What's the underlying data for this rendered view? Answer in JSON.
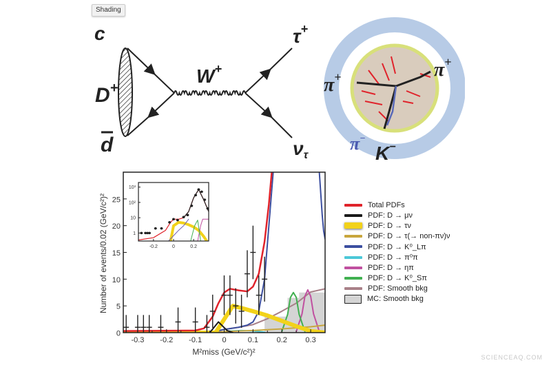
{
  "tooltip": {
    "label": "Shading"
  },
  "feynman": {
    "quark_top": "c",
    "meson": "D",
    "meson_charge": "+",
    "antiquark_bottom": "d",
    "boson": "W",
    "boson_charge": "+",
    "lepton": "τ",
    "lepton_charge": "+",
    "neutrino": "ν",
    "neutrino_sub": "τ"
  },
  "detector": {
    "labels": [
      {
        "text": "π",
        "sup": "+"
      },
      {
        "text": "π",
        "sup": "+"
      },
      {
        "text": "π",
        "sup": "−"
      },
      {
        "text": "K",
        "sup": "−"
      }
    ],
    "colors": {
      "outer_ring": "#b7cbe6",
      "inner_disk": "#d9ccbd",
      "tracks": "#e0232b",
      "layer": "#d8e07a"
    }
  },
  "legend": [
    {
      "label": "Total PDFs",
      "color": "#e0232b"
    },
    {
      "label": "PDF: D → μν",
      "color": "#1a1a1a"
    },
    {
      "label": "PDF: D → τν",
      "color": "#f2d21a"
    },
    {
      "label": "PDF: D → τ(→ non-πν)ν",
      "color": "#c8a63c"
    },
    {
      "label": "PDF: D → K⁰_Lπ",
      "color": "#3c4fa0"
    },
    {
      "label": "PDF: D → π⁰π",
      "color": "#4cc8d8"
    },
    {
      "label": "PDF: D → ηπ",
      "color": "#c050a0"
    },
    {
      "label": "PDF: D → K⁰_Sπ",
      "color": "#40b050"
    },
    {
      "label": "PDF: Smooth bkg",
      "color": "#a88088"
    },
    {
      "label": "MC: Smooth bkg",
      "color": "#d4d4d4"
    }
  ],
  "watermark": "SCIENCEAQ.COM",
  "chart_data": [
    {
      "type": "line",
      "xlabel": "M²miss (GeV/c²)²",
      "ylabel": "Number of events/0.02 (GeV/c²)²",
      "xlim": [
        -0.35,
        0.35
      ],
      "ylim": [
        0,
        30
      ],
      "xticks": [
        "-0.3",
        "-0.2",
        "-0.1",
        "0",
        "0.1",
        "0.2",
        "0.3"
      ],
      "xtick_values": [
        -0.3,
        -0.2,
        -0.1,
        0,
        0.1,
        0.2,
        0.3
      ],
      "yticks": [
        "0",
        "5",
        "10",
        "15",
        "20",
        "25"
      ],
      "ytick_values": [
        0,
        5,
        10,
        15,
        20,
        25
      ],
      "grid": false,
      "legend_placement": "right-outside",
      "data_points": [
        {
          "x": -0.34,
          "y": 1,
          "err": 2.3
        },
        {
          "x": -0.3,
          "y": 1,
          "err": 2.3
        },
        {
          "x": -0.28,
          "y": 1,
          "err": 2.3
        },
        {
          "x": -0.26,
          "y": 1,
          "err": 2.3
        },
        {
          "x": -0.22,
          "y": 1,
          "err": 2.3
        },
        {
          "x": -0.16,
          "y": 2,
          "err": 2.7
        },
        {
          "x": -0.1,
          "y": 2,
          "err": 2.7
        },
        {
          "x": -0.06,
          "y": 1,
          "err": 2.3
        },
        {
          "x": -0.04,
          "y": 4,
          "err": 3.1
        },
        {
          "x": 0.0,
          "y": 7,
          "err": 3.7
        },
        {
          "x": 0.02,
          "y": 7,
          "err": 3.7
        },
        {
          "x": 0.04,
          "y": 5,
          "err": 3.3
        },
        {
          "x": 0.06,
          "y": 4,
          "err": 3.1
        },
        {
          "x": 0.08,
          "y": 11,
          "err": 4.4
        },
        {
          "x": 0.1,
          "y": 15,
          "err": 5
        },
        {
          "x": 0.12,
          "y": 7,
          "err": 3.7
        },
        {
          "x": 0.14,
          "y": 10,
          "err": 4.2
        }
      ],
      "mc_hist": {
        "color": "#d4d4d4",
        "bins": [
          {
            "x0": 0.14,
            "x1": 0.22,
            "y": 3
          },
          {
            "x0": 0.22,
            "x1": 0.26,
            "y": 6.5
          },
          {
            "x0": 0.26,
            "x1": 0.35,
            "y": 7.5
          }
        ]
      },
      "series": [
        {
          "key": "smooth_bkg",
          "color": "#a88088",
          "width": 2,
          "x": [
            -0.06,
            0,
            0.05,
            0.1,
            0.15,
            0.2,
            0.25,
            0.3,
            0.35
          ],
          "y": [
            0,
            0.6,
            1,
            1.5,
            2.6,
            4,
            5.5,
            7.6,
            8.2
          ]
        },
        {
          "key": "etapi",
          "color": "#c050a0",
          "width": 2,
          "x": [
            0.25,
            0.27,
            0.28,
            0.29,
            0.3,
            0.31,
            0.33
          ],
          "y": [
            0.2,
            3.5,
            6.8,
            8,
            6.8,
            3.5,
            0.2
          ]
        },
        {
          "key": "kspi",
          "color": "#40b050",
          "width": 2,
          "x": [
            0.2,
            0.22,
            0.23,
            0.24,
            0.25,
            0.26,
            0.28
          ],
          "y": [
            0.2,
            3.4,
            6.6,
            7.5,
            6.6,
            3.4,
            0.2
          ]
        },
        {
          "key": "pi0pi",
          "color": "#4cc8d8",
          "width": 2,
          "x": [
            -0.02,
            0.02,
            0.06,
            0.1,
            0.14
          ],
          "y": [
            0,
            0.3,
            0.4,
            0.3,
            0.1
          ]
        },
        {
          "key": "tau_nonpi",
          "color": "#c8a63c",
          "width": 2,
          "x": [
            -0.35,
            0,
            0.1,
            0.2,
            0.3,
            0.35
          ],
          "y": [
            0.1,
            0.2,
            0.4,
            0.7,
            1.1,
            1.4
          ]
        },
        {
          "key": "klpi_left",
          "color": "#3c4fa0",
          "width": 2,
          "x": [
            -0.05,
            0,
            0.05,
            0.08,
            0.1,
            0.12,
            0.14,
            0.155,
            0.17
          ],
          "y": [
            0,
            0.6,
            1,
            1.4,
            2,
            4,
            10,
            20,
            30
          ]
        },
        {
          "key": "klpi_right",
          "color": "#3c4fa0",
          "width": 2,
          "x": [
            0.33,
            0.335,
            0.34,
            0.345,
            0.35
          ],
          "y": [
            30,
            26,
            22,
            19,
            17.5
          ]
        },
        {
          "key": "taunu",
          "color": "#f2d21a",
          "width": 6,
          "x": [
            -0.35,
            -0.03,
            0,
            0.03,
            0.06,
            0.1,
            0.15,
            0.2,
            0.25,
            0.3,
            0.35
          ],
          "y": [
            0,
            0,
            2.5,
            5,
            4.6,
            4,
            3.2,
            2.2,
            1.2,
            0.3,
            0
          ]
        },
        {
          "key": "munu",
          "color": "#1a1a1a",
          "width": 2,
          "x": [
            -0.05,
            -0.035,
            -0.02,
            -0.005,
            0.01,
            0.03
          ],
          "y": [
            0,
            1,
            2,
            1.2,
            0.4,
            0
          ]
        },
        {
          "key": "total",
          "color": "#e0232b",
          "width": 2.5,
          "x": [
            -0.35,
            -0.1,
            -0.07,
            -0.04,
            -0.02,
            0,
            0.02,
            0.05,
            0.08,
            0.1,
            0.12,
            0.14,
            0.155,
            0.165
          ],
          "y": [
            0.3,
            0.4,
            0.8,
            3,
            5.5,
            7.5,
            8.2,
            7.9,
            7.7,
            8.6,
            11,
            17,
            24,
            30
          ]
        }
      ]
    },
    {
      "type": "line",
      "inset": true,
      "xlim": [
        -0.35,
        0.35
      ],
      "yscale": "log",
      "ylim": [
        0.3,
        2000
      ],
      "xticks": [
        "-0.2",
        "0",
        "0.2"
      ],
      "xtick_values": [
        -0.2,
        0,
        0.2
      ],
      "yticks": [
        "1",
        "10",
        "10²",
        "10³"
      ],
      "ytick_values": [
        1,
        10,
        100,
        1000
      ],
      "data_points": [
        {
          "x": -0.32,
          "y": 1
        },
        {
          "x": -0.28,
          "y": 1
        },
        {
          "x": -0.26,
          "y": 1
        },
        {
          "x": -0.24,
          "y": 1
        },
        {
          "x": -0.18,
          "y": 2
        },
        {
          "x": -0.12,
          "y": 2
        },
        {
          "x": -0.04,
          "y": 5
        },
        {
          "x": 0,
          "y": 8
        },
        {
          "x": 0.04,
          "y": 7
        },
        {
          "x": 0.1,
          "y": 11
        },
        {
          "x": 0.14,
          "y": 15
        },
        {
          "x": 0.18,
          "y": 60
        },
        {
          "x": 0.22,
          "y": 300
        },
        {
          "x": 0.25,
          "y": 700
        },
        {
          "x": 0.28,
          "y": 500
        },
        {
          "x": 0.31,
          "y": 150
        },
        {
          "x": 0.34,
          "y": 40
        }
      ],
      "series": [
        {
          "key": "total",
          "color": "#e0232b",
          "width": 1.2,
          "x": [
            -0.35,
            -0.2,
            -0.08,
            -0.03,
            0,
            0.05,
            0.1,
            0.15,
            0.2,
            0.25,
            0.3,
            0.35
          ],
          "y": [
            0.35,
            0.5,
            1.5,
            5,
            8,
            8,
            10,
            25,
            200,
            700,
            150,
            25
          ]
        },
        {
          "key": "total_black",
          "color": "#222",
          "width": 1.2,
          "x": [
            0.1,
            0.15,
            0.2,
            0.25,
            0.3,
            0.35
          ],
          "y": [
            10,
            25,
            200,
            700,
            150,
            25
          ]
        },
        {
          "key": "taunu",
          "color": "#f2d21a",
          "width": 4,
          "x": [
            -0.03,
            0,
            0.05,
            0.1,
            0.15,
            0.2,
            0.25,
            0.3,
            0.33
          ],
          "y": [
            0.3,
            3,
            5,
            4.5,
            3.5,
            2.5,
            1.5,
            0.6,
            0.3
          ]
        },
        {
          "key": "klpi",
          "color": "#7060b0",
          "width": 1,
          "x": [
            -0.05,
            0.05,
            0.1,
            0.15
          ],
          "y": [
            0.3,
            1.5,
            3,
            8
          ]
        },
        {
          "key": "etapi",
          "color": "#c050a0",
          "width": 1,
          "x": [
            0.24,
            0.27,
            0.29,
            0.31,
            0.35
          ],
          "y": [
            0.3,
            3,
            8,
            8,
            8
          ]
        },
        {
          "key": "kspi",
          "color": "#40b050",
          "width": 1,
          "x": [
            0.17,
            0.21,
            0.24,
            0.27
          ],
          "y": [
            0.3,
            3,
            7,
            0.3
          ]
        }
      ]
    }
  ]
}
